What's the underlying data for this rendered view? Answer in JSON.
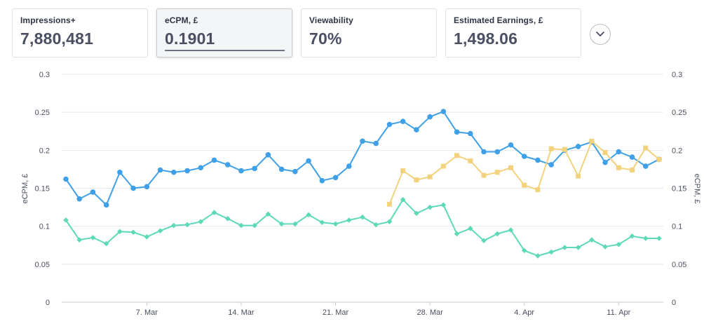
{
  "metrics": [
    {
      "label": "Impressions+",
      "value": "7,880,481"
    },
    {
      "label": "eCPM, £",
      "value": "0.1901"
    },
    {
      "label": "Viewability",
      "value": "70%"
    },
    {
      "label": "Estimated Earnings, £",
      "value": "1,498.06"
    }
  ],
  "expand_icon": "chevron-down-icon",
  "chart_data": {
    "type": "line",
    "ylabel_left": "eCPM, £",
    "ylabel_right": "eCPM, £",
    "ylim": [
      0,
      0.3
    ],
    "yticks": [
      "0",
      "0.05",
      "0.1",
      "0.15",
      "0.2",
      "0.25",
      "0.3"
    ],
    "xticks": [
      {
        "label": "7. Mar",
        "day": 7
      },
      {
        "label": "14. Mar",
        "day": 14
      },
      {
        "label": "21. Mar",
        "day": 21
      },
      {
        "label": "28. Mar",
        "day": 28
      },
      {
        "label": "4. Apr",
        "day": 35
      },
      {
        "label": "11. Apr",
        "day": 42
      }
    ],
    "x_days_start": 1,
    "grid": true,
    "series": [
      {
        "color": "#3fa0e8",
        "marker": "circle",
        "start_day": 1,
        "values": [
          0.162,
          0.136,
          0.145,
          0.128,
          0.171,
          0.15,
          0.152,
          0.174,
          0.171,
          0.173,
          0.177,
          0.187,
          0.181,
          0.173,
          0.176,
          0.194,
          0.175,
          0.172,
          0.186,
          0.16,
          0.164,
          0.179,
          0.212,
          0.209,
          0.234,
          0.238,
          0.227,
          0.244,
          0.251,
          0.224,
          0.222,
          0.198,
          0.198,
          0.207,
          0.192,
          0.187,
          0.181,
          0.2,
          0.205,
          0.211,
          0.184,
          0.198,
          0.191,
          0.179,
          0.188
        ]
      },
      {
        "color": "#5ed9b8",
        "marker": "diamond",
        "start_day": 1,
        "values": [
          0.108,
          0.082,
          0.085,
          0.077,
          0.093,
          0.092,
          0.086,
          0.094,
          0.101,
          0.102,
          0.106,
          0.118,
          0.11,
          0.101,
          0.101,
          0.116,
          0.103,
          0.103,
          0.115,
          0.105,
          0.103,
          0.108,
          0.112,
          0.102,
          0.106,
          0.135,
          0.117,
          0.125,
          0.128,
          0.09,
          0.097,
          0.081,
          0.09,
          0.095,
          0.068,
          0.061,
          0.066,
          0.072,
          0.072,
          0.082,
          0.073,
          0.076,
          0.087,
          0.084,
          0.084
        ]
      },
      {
        "color": "#f2d27c",
        "marker": "square",
        "start_day": 25,
        "values": [
          0.129,
          0.173,
          0.161,
          0.165,
          0.179,
          0.193,
          0.186,
          0.167,
          0.171,
          0.177,
          0.154,
          0.148,
          0.202,
          0.201,
          0.166,
          0.212,
          0.197,
          0.177,
          0.174,
          0.203,
          0.188
        ]
      }
    ]
  }
}
